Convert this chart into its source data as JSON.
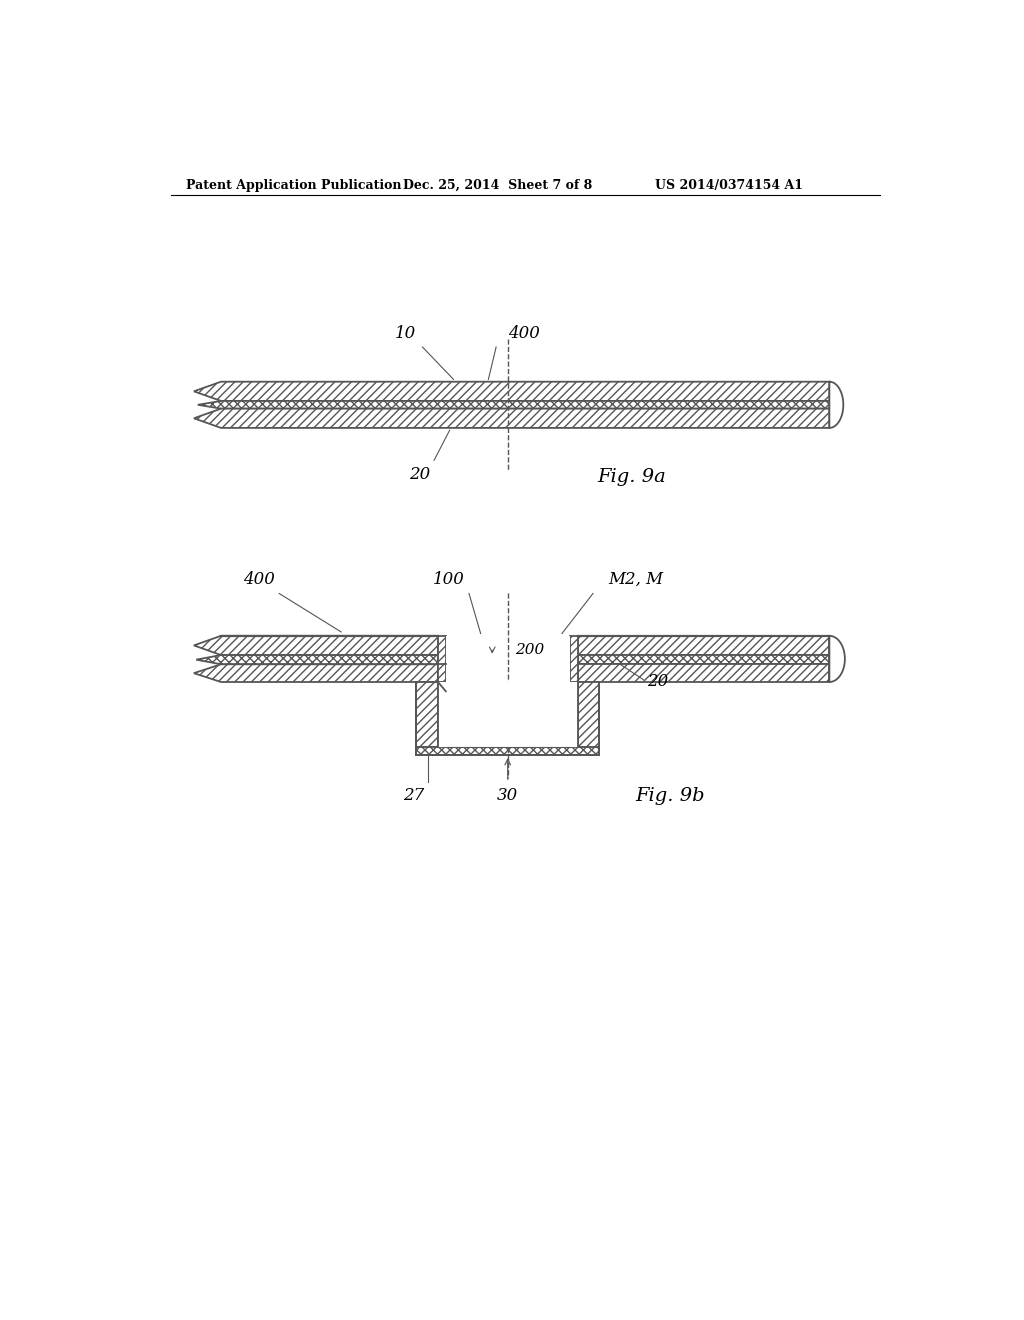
{
  "bg_color": "#ffffff",
  "line_color": "#555555",
  "header_left": "Patent Application Publication",
  "header_center": "Dec. 25, 2014  Sheet 7 of 8",
  "header_right": "US 2014/0374154 A1",
  "fig9a_label": "Fig. 9a",
  "fig9b_label": "Fig. 9b",
  "label_10": "10",
  "label_400_9a": "400",
  "label_20_9a": "20",
  "label_400_9b": "400",
  "label_100": "100",
  "label_m2_m": "M2, M",
  "label_200": "200",
  "label_20_9b": "20",
  "label_27": "27",
  "label_30": "30"
}
